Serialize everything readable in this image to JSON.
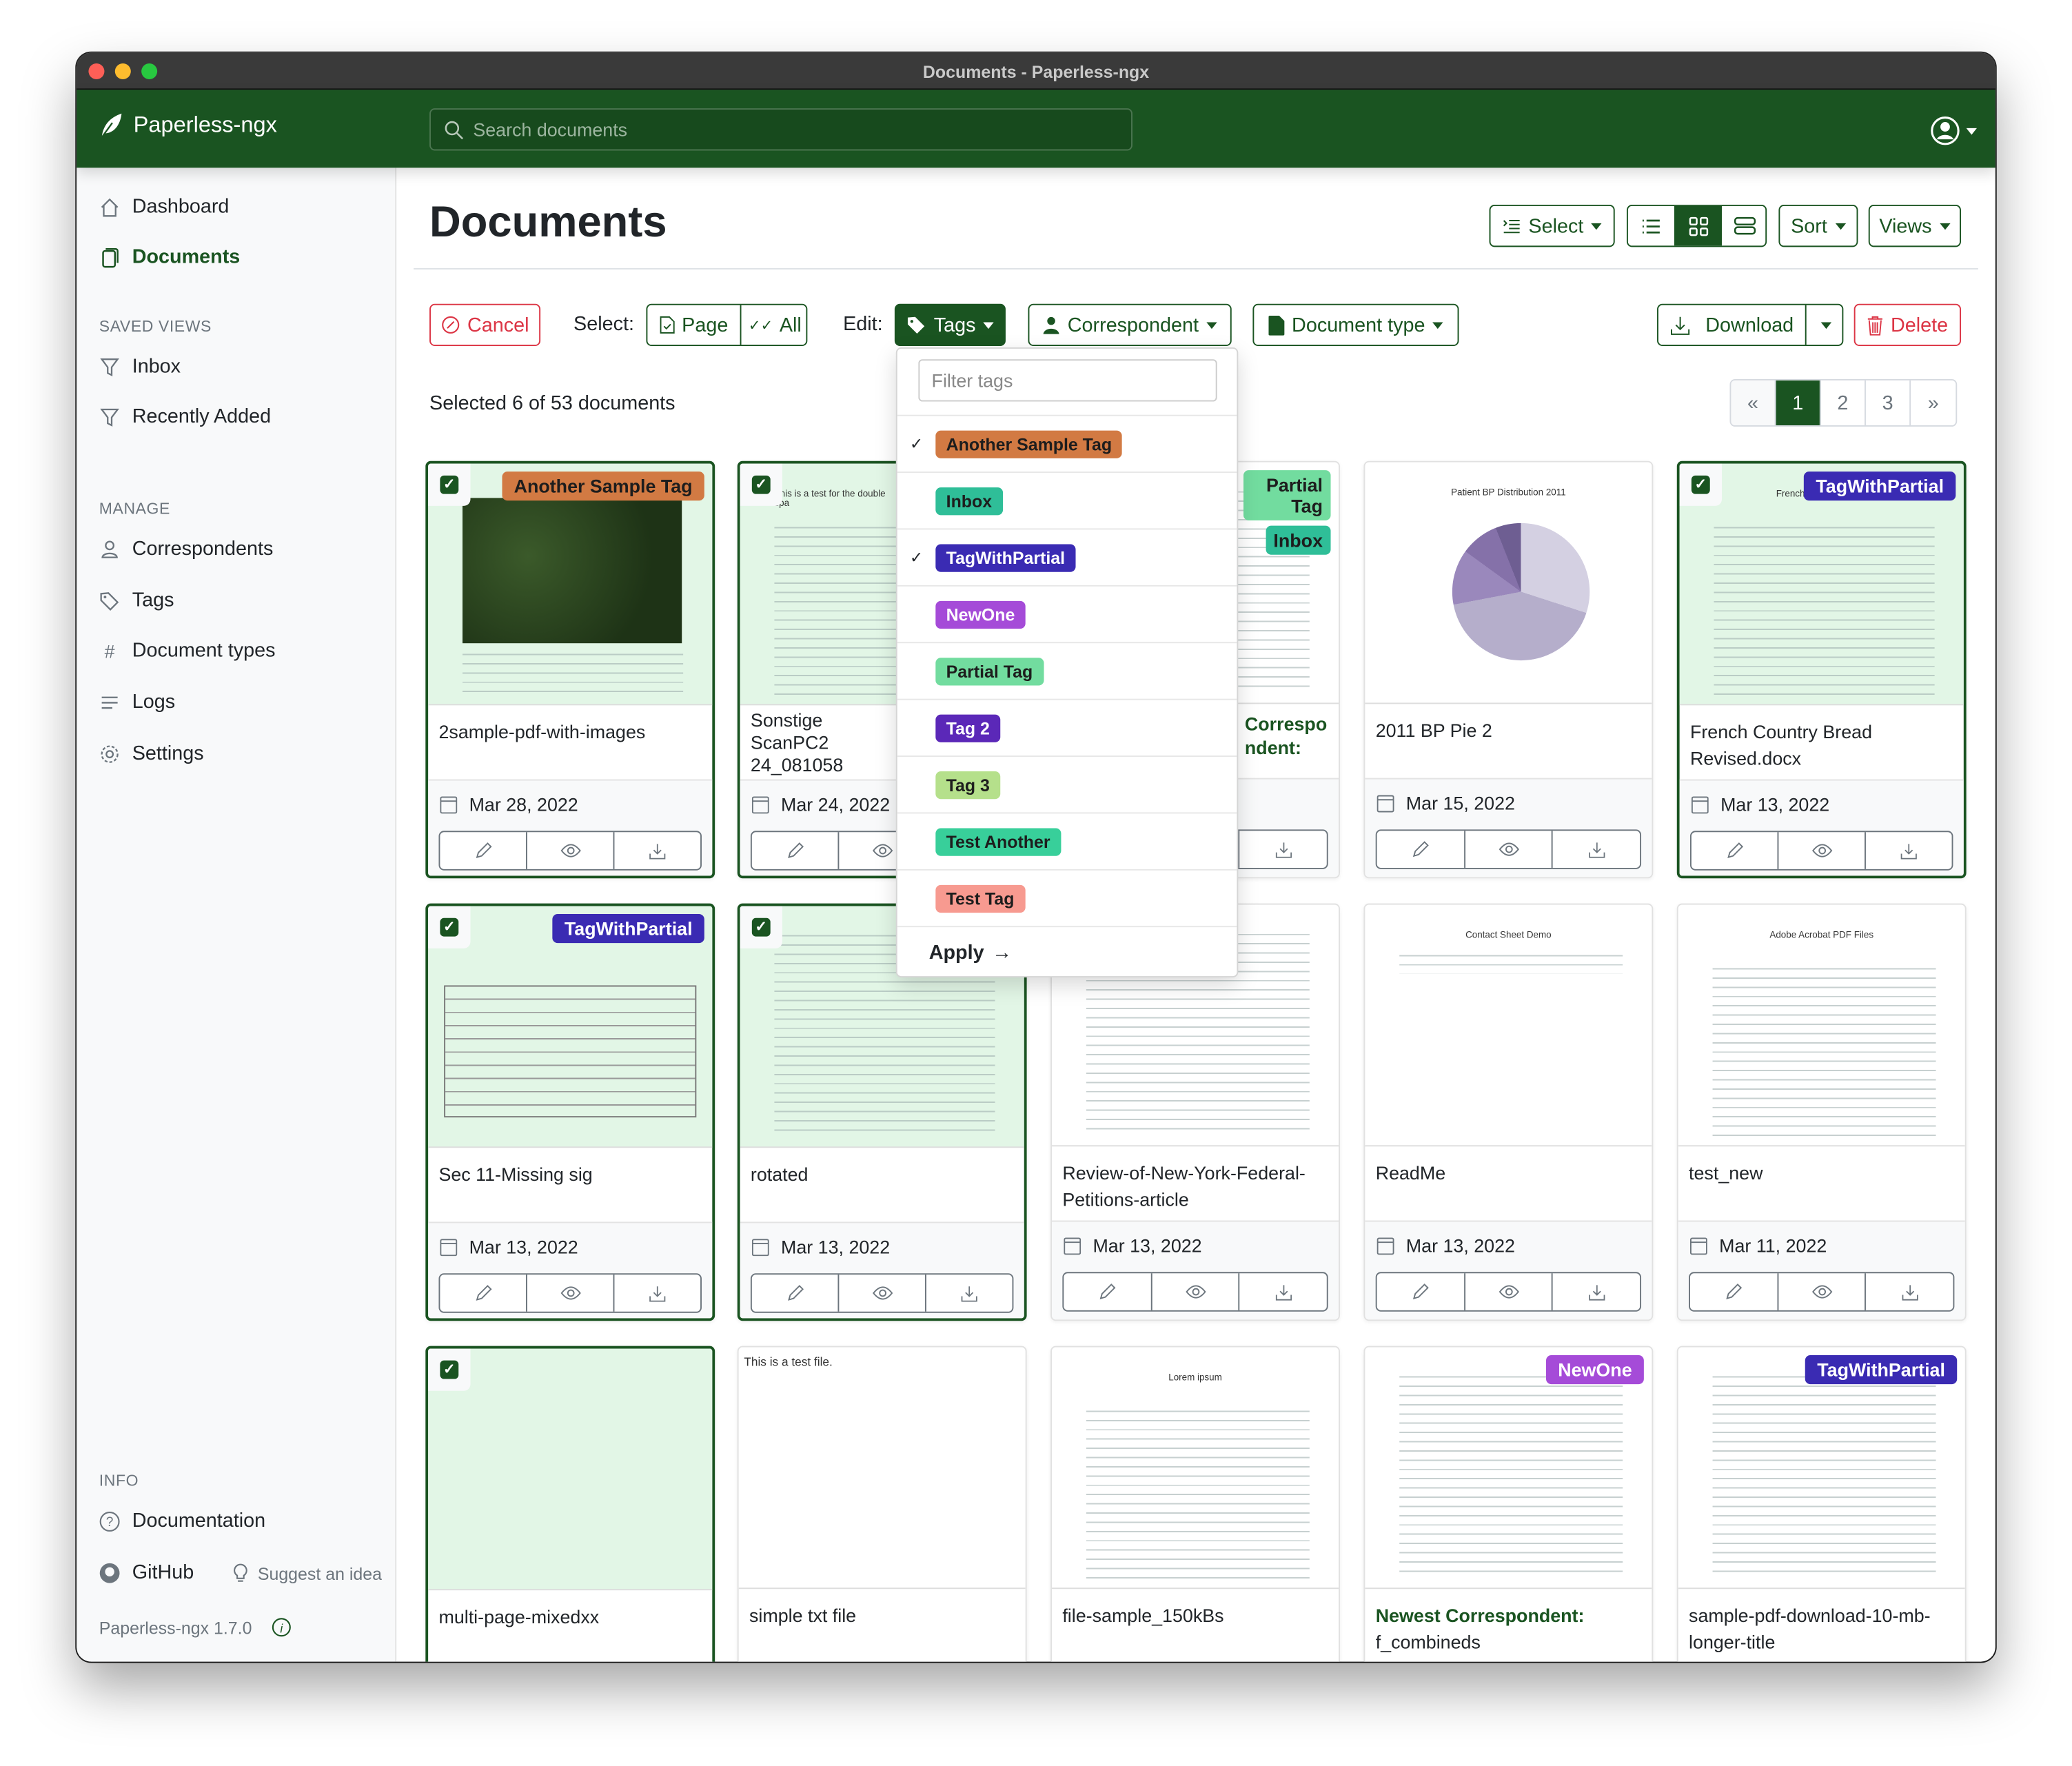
{
  "window": {
    "title": "Documents - Paperless-ngx"
  },
  "navbar": {
    "brand": "Paperless-ngx",
    "search_placeholder": "Search documents",
    "color": "#1a5421"
  },
  "sidebar": {
    "nav": [
      {
        "label": "Dashboard",
        "icon": "house-icon"
      },
      {
        "label": "Documents",
        "icon": "documents-icon",
        "active": true
      }
    ],
    "saved_views_heading": "SAVED VIEWS",
    "saved_views": [
      {
        "label": "Inbox",
        "icon": "funnel-icon"
      },
      {
        "label": "Recently Added",
        "icon": "funnel-icon"
      }
    ],
    "manage_heading": "MANAGE",
    "manage": [
      {
        "label": "Correspondents",
        "icon": "person-icon"
      },
      {
        "label": "Tags",
        "icon": "tag-icon"
      },
      {
        "label": "Document types",
        "icon": "hash-icon"
      },
      {
        "label": "Logs",
        "icon": "text-lines-icon"
      },
      {
        "label": "Settings",
        "icon": "gear-icon"
      }
    ],
    "info_heading": "INFO",
    "documentation": "Documentation",
    "github": "GitHub",
    "suggest": "Suggest an idea",
    "version": "Paperless-ngx 1.7.0"
  },
  "page": {
    "title": "Documents",
    "select_label": "Select",
    "sort_label": "Sort",
    "views_label": "Views",
    "display_mode": "small-cards"
  },
  "bulk": {
    "cancel": "Cancel",
    "select_label": "Select:",
    "page": "Page",
    "all": "All",
    "edit_label": "Edit:",
    "tags": "Tags",
    "correspondent": "Correspondent",
    "document_type": "Document type",
    "download": "Download",
    "delete": "Delete",
    "selected_text": "Selected 6 of 53 documents"
  },
  "pagination": {
    "prev": "«",
    "pages": [
      "1",
      "2",
      "3"
    ],
    "current": "1",
    "next": "»"
  },
  "tags_dropdown": {
    "filter_placeholder": "Filter tags",
    "items": [
      {
        "name": "Another Sample Tag",
        "color": "#d27a43",
        "text": "#1d1d1d",
        "checked": true
      },
      {
        "name": "Inbox",
        "color": "#2fbe98",
        "text": "#1d1d1d",
        "checked": false
      },
      {
        "name": "TagWithPartial",
        "color": "#3a2bb3",
        "text": "#ffffff",
        "checked": true
      },
      {
        "name": "NewOne",
        "color": "#a54bd8",
        "text": "#ffffff",
        "checked": false
      },
      {
        "name": "Partial Tag",
        "color": "#72dc9f",
        "text": "#1d1d1d",
        "checked": false
      },
      {
        "name": "Tag 2",
        "color": "#5b28b8",
        "text": "#ffffff",
        "checked": false
      },
      {
        "name": "Tag 3",
        "color": "#b5e08b",
        "text": "#1d1d1d",
        "checked": false
      },
      {
        "name": "Test Another",
        "color": "#38cf9a",
        "text": "#1d1d1d",
        "checked": false
      },
      {
        "name": "Test Tag",
        "color": "#f79a90",
        "text": "#1d1d1d",
        "checked": false
      }
    ],
    "apply": "Apply"
  },
  "documents": [
    {
      "title": "2sample-pdf-with-images",
      "date": "Mar 28, 2022",
      "selected": true,
      "tags": [
        "Another Sample Tag"
      ],
      "preview": "map"
    },
    {
      "title": "Sonstige ScanPC2 24_081058",
      "date": "Mar 24, 2022",
      "selected": true,
      "tags": [],
      "preview": "text",
      "preview_text": "This is a test for the double spa"
    },
    {
      "title": "Correspondent:",
      "date": "",
      "selected": false,
      "tags": [
        "Partial Tag",
        "Inbox"
      ],
      "preview": "text",
      "correspondent": true
    },
    {
      "title": "2011 BP Pie 2",
      "date": "Mar 15, 2022",
      "selected": false,
      "tags": [],
      "preview": "pie",
      "preview_text": "Patient BP Distribution 2011"
    },
    {
      "title": "French Country Bread Revised.docx",
      "date": "Mar 13, 2022",
      "selected": true,
      "tags": [
        "TagWithPartial"
      ],
      "preview": "text",
      "preview_text": "French Country Bread"
    },
    {
      "title": "Sec 11-Missing sig",
      "date": "Mar 13, 2022",
      "selected": true,
      "tags": [
        "TagWithPartial"
      ],
      "preview": "form"
    },
    {
      "title": "rotated",
      "date": "Mar 13, 2022",
      "selected": true,
      "tags": [],
      "preview": "text"
    },
    {
      "title": "Review-of-New-York-Federal-Petitions-article",
      "date": "Mar 13, 2022",
      "selected": false,
      "tags": [],
      "preview": "text"
    },
    {
      "title": "ReadMe",
      "date": "Mar 13, 2022",
      "selected": false,
      "tags": [],
      "preview": "sparse",
      "preview_text": "Contact Sheet Demo"
    },
    {
      "title": "test_new",
      "date": "Mar 11, 2022",
      "selected": false,
      "tags": [],
      "preview": "text",
      "preview_text": "Adobe Acrobat PDF Files"
    },
    {
      "title": "multi-page-mixedxx",
      "date": "",
      "selected": true,
      "tags": [],
      "preview": "blank"
    },
    {
      "title": "simple txt file",
      "date": "",
      "selected": false,
      "tags": [],
      "preview": "note",
      "preview_text": "This is a test file."
    },
    {
      "title": "file-sample_150kBs",
      "date": "",
      "selected": false,
      "tags": [],
      "preview": "text",
      "preview_text": "Lorem ipsum"
    },
    {
      "title": "Newest Correspondent:",
      "subtitle": "f_combineds",
      "date": "",
      "selected": false,
      "tags": [
        "NewOne"
      ],
      "preview": "text",
      "correspondent": true
    },
    {
      "title": "sample-pdf-download-10-mb-longer-title",
      "date": "",
      "selected": false,
      "tags": [
        "TagWithPartial"
      ],
      "preview": "text"
    }
  ]
}
